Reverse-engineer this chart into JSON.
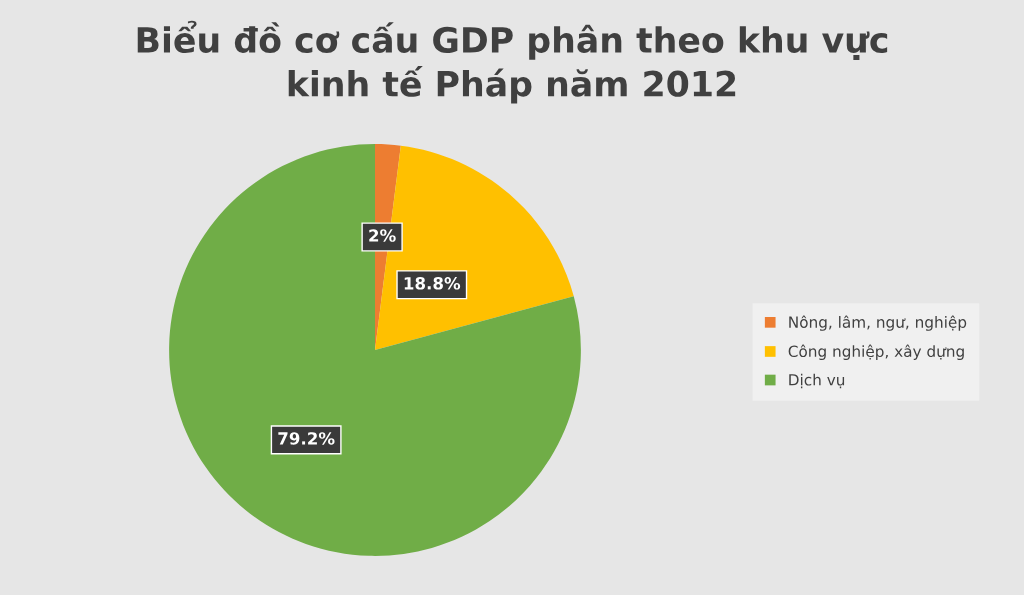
{
  "chart_data": {
    "type": "pie",
    "title": "Biểu đồ cơ cấu GDP phân theo khu vực\nkinh tế Pháp năm 2012",
    "categories": [
      "Nông, lâm, ngư, nghiệp",
      "Công nghiệp, xây dựng",
      "Dịch vụ"
    ],
    "values": [
      2,
      18.8,
      79.2
    ],
    "colors": [
      "#ed7d31",
      "#ffc000",
      "#70ad47"
    ],
    "value_labels": [
      "2%",
      "18.8%",
      "79.2%"
    ],
    "legend": "right"
  }
}
